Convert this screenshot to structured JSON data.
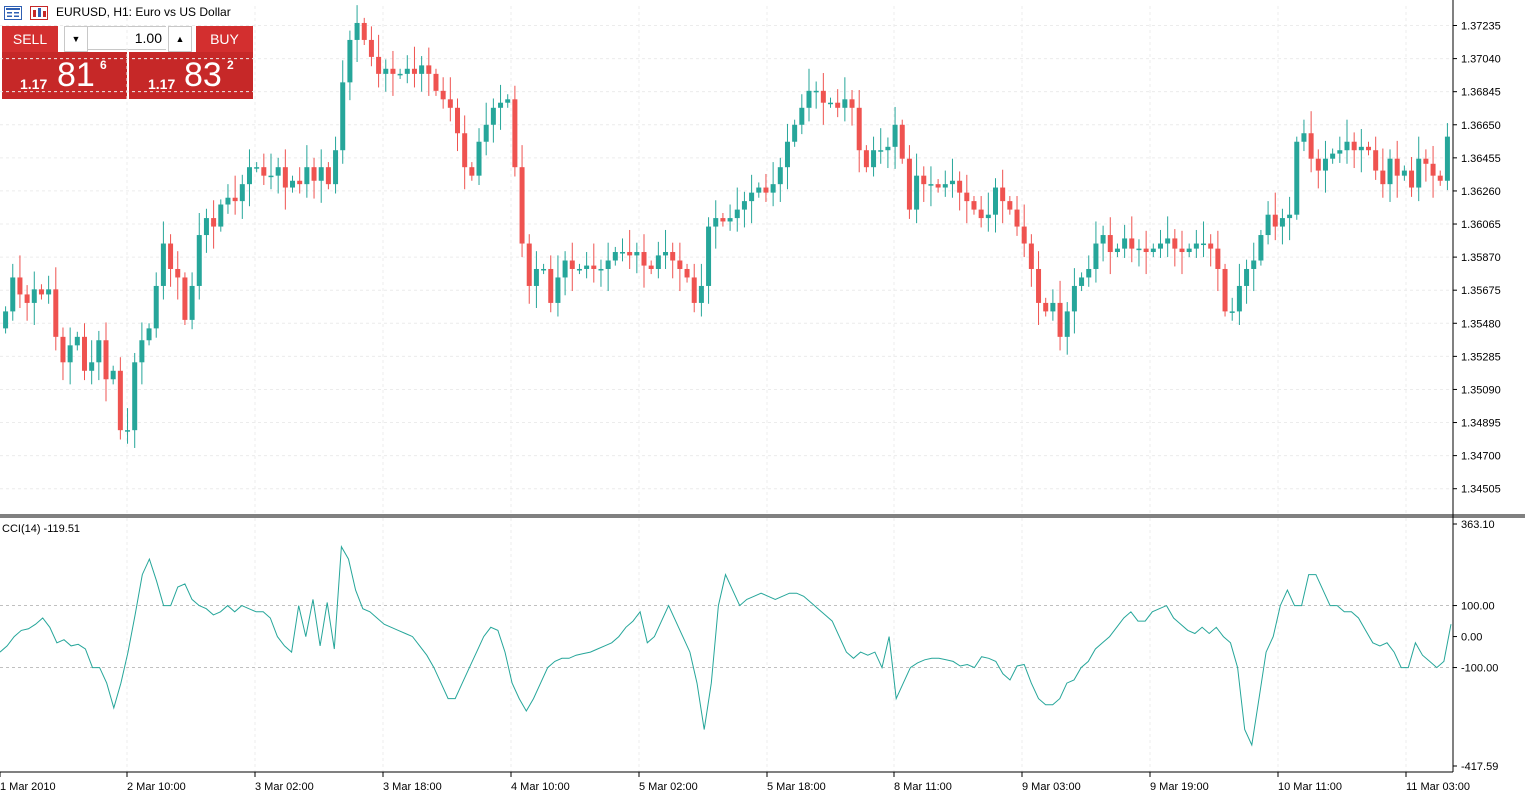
{
  "header": {
    "symbol_title": "EURUSD, H1:  Euro vs US Dollar",
    "icons": [
      "chart-list-icon",
      "one-click-trading-icon"
    ]
  },
  "trade_panel": {
    "sell_label": "SELL",
    "buy_label": "BUY",
    "lot_value": "1.00",
    "bid": {
      "prefix": "1.17",
      "big": "81",
      "sup": "6"
    },
    "ask": {
      "prefix": "1.17",
      "big": "83",
      "sup": "2"
    },
    "colors": {
      "button": "#d32f2f",
      "price_bg": "#c62828"
    }
  },
  "chart_data": [
    {
      "type": "candlestick",
      "symbol": "EURUSD",
      "timeframe": "H1",
      "ylim": [
        1.3435,
        1.3735
      ],
      "y_ticks": [
        "1.37235",
        "1.37040",
        "1.36845",
        "1.36650",
        "1.36455",
        "1.36260",
        "1.36065",
        "1.35870",
        "1.35675",
        "1.35480",
        "1.35285",
        "1.35090",
        "1.34895",
        "1.34700",
        "1.34505"
      ],
      "x_ticks": [
        "1 Mar 2010",
        "2 Mar 10:00",
        "3 Mar 02:00",
        "3 Mar 18:00",
        "4 Mar 10:00",
        "5 Mar 02:00",
        "5 Mar 18:00",
        "8 Mar 11:00",
        "9 Mar 03:00",
        "9 Mar 19:00",
        "10 Mar 11:00",
        "11 Mar 03:00"
      ],
      "grid": true,
      "colors": {
        "up": "#26a69a",
        "down": "#ef5350"
      },
      "close": [
        1.3555,
        1.3575,
        1.3565,
        1.356,
        1.3568,
        1.3565,
        1.3568,
        1.354,
        1.3525,
        1.3535,
        1.354,
        1.352,
        1.3525,
        1.3538,
        1.3515,
        1.352,
        1.3485,
        1.3485,
        1.3525,
        1.3538,
        1.3545,
        1.357,
        1.3595,
        1.358,
        1.3575,
        1.355,
        1.357,
        1.36,
        1.361,
        1.3605,
        1.3618,
        1.3622,
        1.362,
        1.363,
        1.364,
        1.364,
        1.3635,
        1.3635,
        1.364,
        1.3628,
        1.3632,
        1.363,
        1.364,
        1.3632,
        1.364,
        1.363,
        1.365,
        1.369,
        1.3715,
        1.3725,
        1.3715,
        1.3705,
        1.3695,
        1.3698,
        1.3695,
        1.3695,
        1.3698,
        1.3695,
        1.37,
        1.3695,
        1.3685,
        1.368,
        1.3675,
        1.366,
        1.364,
        1.3635,
        1.3655,
        1.3665,
        1.3675,
        1.3678,
        1.368,
        1.364,
        1.3595,
        1.357,
        1.358,
        1.358,
        1.356,
        1.3575,
        1.3585,
        1.358,
        1.358,
        1.3582,
        1.358,
        1.358,
        1.3585,
        1.359,
        1.359,
        1.3588,
        1.359,
        1.3582,
        1.358,
        1.3588,
        1.359,
        1.3585,
        1.358,
        1.3575,
        1.356,
        1.357,
        1.3605,
        1.361,
        1.3608,
        1.361,
        1.3615,
        1.362,
        1.3625,
        1.3628,
        1.3625,
        1.363,
        1.364,
        1.3655,
        1.3665,
        1.3675,
        1.3685,
        1.3685,
        1.3678,
        1.3678,
        1.3675,
        1.368,
        1.3675,
        1.365,
        1.364,
        1.365,
        1.365,
        1.3652,
        1.3665,
        1.3645,
        1.3615,
        1.3635,
        1.363,
        1.363,
        1.3628,
        1.363,
        1.3632,
        1.3625,
        1.362,
        1.3615,
        1.361,
        1.3612,
        1.3628,
        1.362,
        1.3615,
        1.3605,
        1.3595,
        1.358,
        1.356,
        1.3555,
        1.356,
        1.354,
        1.3555,
        1.357,
        1.3575,
        1.358,
        1.3595,
        1.36,
        1.359,
        1.3592,
        1.3598,
        1.3592,
        1.3592,
        1.359,
        1.3592,
        1.3595,
        1.3598,
        1.3592,
        1.359,
        1.3592,
        1.3595,
        1.3595,
        1.3592,
        1.358,
        1.3555,
        1.3555,
        1.357,
        1.358,
        1.3585,
        1.36,
        1.3612,
        1.3605,
        1.361,
        1.3612,
        1.3655,
        1.366,
        1.3645,
        1.3638,
        1.3645,
        1.3648,
        1.365,
        1.3655,
        1.365,
        1.3652,
        1.365,
        1.3638,
        1.363,
        1.3645,
        1.3635,
        1.3638,
        1.3628,
        1.3645,
        1.3642,
        1.3635,
        1.3632,
        1.3658
      ]
    },
    {
      "type": "line",
      "indicator": "CCI(14)",
      "ylim": [
        -417.59,
        363.1
      ],
      "y_ticks": [
        "363.10",
        "100.00",
        "0.00",
        "-100.00",
        "-417.59"
      ],
      "levels": [
        100,
        -100
      ],
      "color": "#26a69a",
      "values": [
        -50,
        -30,
        0,
        20,
        25,
        40,
        60,
        30,
        -20,
        -10,
        -30,
        -25,
        -40,
        -100,
        -100,
        -150,
        -230,
        -150,
        -50,
        70,
        200,
        250,
        180,
        100,
        100,
        160,
        170,
        120,
        100,
        90,
        70,
        80,
        100,
        80,
        100,
        90,
        80,
        80,
        60,
        0,
        -30,
        -50,
        100,
        0,
        120,
        -30,
        110,
        -40,
        290,
        250,
        150,
        90,
        80,
        60,
        40,
        30,
        20,
        10,
        0,
        -30,
        -60,
        -100,
        -150,
        -200,
        -200,
        -150,
        -100,
        -50,
        0,
        30,
        20,
        -50,
        -150,
        -200,
        -240,
        -200,
        -150,
        -100,
        -80,
        -70,
        -70,
        -60,
        -55,
        -50,
        -40,
        -30,
        -20,
        0,
        30,
        50,
        80,
        -20,
        0,
        50,
        100,
        50,
        0,
        -50,
        -150,
        -300,
        -150,
        100,
        200,
        150,
        100,
        120,
        130,
        140,
        130,
        120,
        130,
        140,
        140,
        130,
        110,
        90,
        70,
        50,
        0,
        -50,
        -70,
        -50,
        -60,
        -50,
        -100,
        0,
        -200,
        -150,
        -100,
        -85,
        -75,
        -70,
        -70,
        -75,
        -80,
        -95,
        -90,
        -100,
        -65,
        -70,
        -80,
        -120,
        -140,
        -95,
        -90,
        -150,
        -200,
        -220,
        -220,
        -200,
        -150,
        -140,
        -100,
        -80,
        -40,
        -20,
        0,
        30,
        60,
        80,
        50,
        50,
        80,
        90,
        100,
        60,
        40,
        20,
        10,
        30,
        10,
        30,
        0,
        -20,
        -100,
        -300,
        -350,
        -200,
        -50,
        0,
        100,
        150,
        100,
        100,
        200,
        200,
        150,
        100,
        100,
        80,
        80,
        60,
        20,
        -20,
        -30,
        -20,
        -50,
        -100,
        -100,
        -20,
        -60,
        -80,
        -100,
        -80,
        40
      ]
    }
  ],
  "cci": {
    "label": "CCI(14) -119.51"
  }
}
